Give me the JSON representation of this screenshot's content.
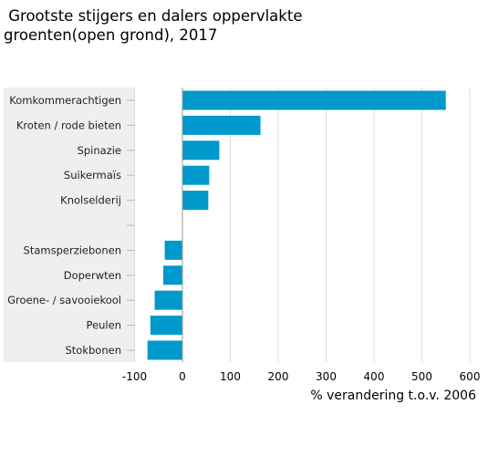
{
  "title_line1": " Grootste stijgers en dalers oppervlakte",
  "title_line2": "groenten(open grond), 2017",
  "colors": {
    "bar": "#0099cc",
    "panel": "#efefef",
    "grid": "#dddddd",
    "zero": "#999999"
  },
  "chart_data": {
    "type": "bar",
    "orientation": "horizontal",
    "title": "Grootste stijgers en dalers oppervlakte groenten(open grond), 2017",
    "xlabel": "% verandering t.o.v. 2006",
    "ylabel": "",
    "xlim": [
      -100,
      620
    ],
    "xticks": [
      -100,
      0,
      100,
      200,
      300,
      400,
      500,
      600
    ],
    "grid": true,
    "categories": [
      "Komkommerachtigen",
      "Kroten / rode bieten",
      "Spinazie",
      "Suikermaïs",
      "Knolselderij",
      "",
      "Stamsperziebonen",
      "Doperwten",
      "Groene- / savooiekool",
      "Peulen",
      "Stokbonen"
    ],
    "values": [
      550,
      163,
      77,
      56,
      54,
      null,
      -37,
      -40,
      -58,
      -67,
      -73
    ]
  }
}
